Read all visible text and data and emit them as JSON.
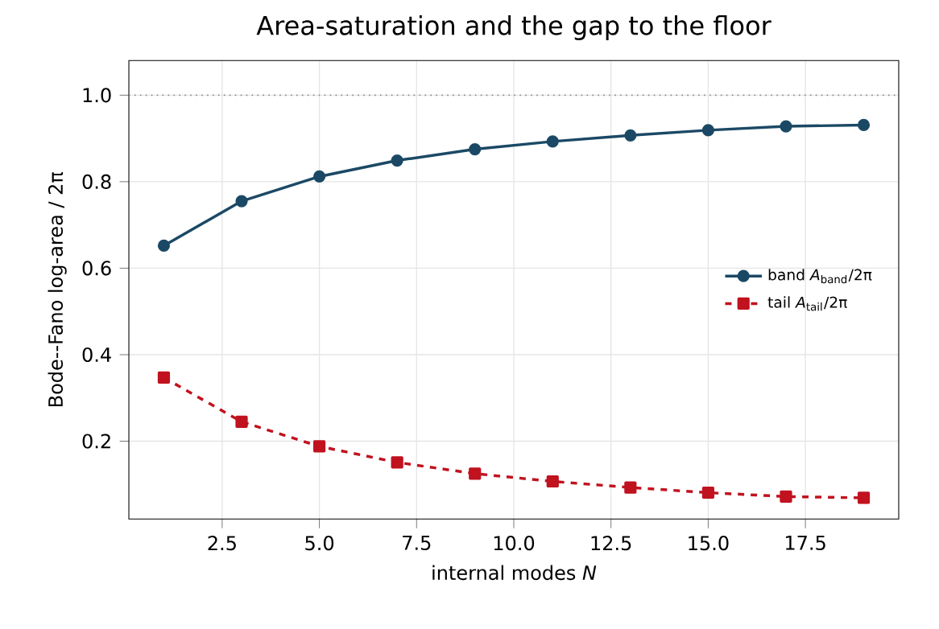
{
  "chart_data": {
    "type": "line",
    "title": "Area-saturation and the gap to the floor",
    "xlabel": "internal modes *N*",
    "ylabel": "Bode--Fano log-area / 2π",
    "x": [
      1,
      3,
      5,
      7,
      9,
      11,
      13,
      15,
      17,
      19
    ],
    "series": [
      {
        "name": "band *A*$_{band}$/2π",
        "color": "#1b4965",
        "marker": "circle",
        "line_style": "solid",
        "values": [
          0.652,
          0.755,
          0.812,
          0.849,
          0.875,
          0.893,
          0.907,
          0.919,
          0.928,
          0.931
        ]
      },
      {
        "name": "tail *A*$_{tail}$/2π",
        "color": "#c1121f",
        "marker": "square",
        "line_style": "dashed",
        "values": [
          0.347,
          0.245,
          0.188,
          0.151,
          0.125,
          0.107,
          0.093,
          0.081,
          0.072,
          0.069
        ]
      }
    ],
    "xlim": [
      0.1,
      19.9
    ],
    "ylim": [
      0.02,
      1.08
    ],
    "xticks": [
      2.5,
      {
        "value": 5,
        "label": "5.0"
      },
      7.5,
      {
        "value": 10,
        "label": "10.0"
      },
      12.5,
      {
        "value": 15,
        "label": "15.0"
      },
      17.5
    ],
    "yticks": [
      0.2,
      0.4,
      0.6,
      0.8,
      {
        "value": 1,
        "label": "1.0"
      }
    ],
    "ref_lines": [
      {
        "axis": "y",
        "value": 1.0,
        "color": "#888888",
        "line_style": "dotted"
      }
    ],
    "grid": true,
    "legend": "right"
  }
}
